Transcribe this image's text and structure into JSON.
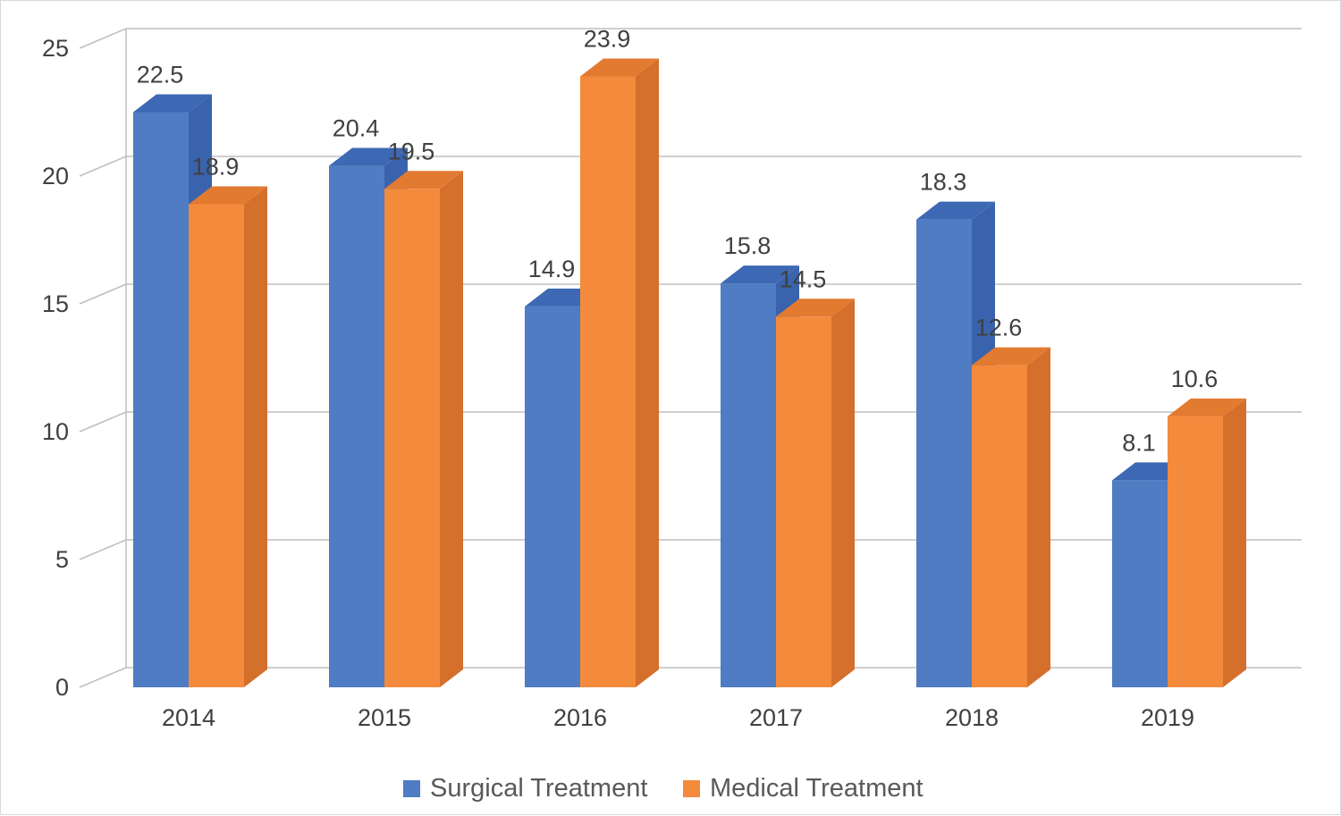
{
  "chart_data": {
    "type": "bar",
    "style": "3d-clustered-column",
    "categories": [
      "2014",
      "2015",
      "2016",
      "2017",
      "2018",
      "2019"
    ],
    "series": [
      {
        "name": "Surgical Treatment",
        "values": [
          22.5,
          20.4,
          14.9,
          15.8,
          18.3,
          8.1
        ],
        "color": "#4f7cc2",
        "side_color": "#3a63ad",
        "top_color": "#3d68b3"
      },
      {
        "name": "Medical Treatment",
        "values": [
          18.9,
          19.5,
          23.9,
          14.5,
          12.6,
          10.6
        ],
        "color": "#f48a3c",
        "side_color": "#d46f2c",
        "top_color": "#e27a30"
      }
    ],
    "y_ticks": [
      "0",
      "5",
      "10",
      "15",
      "20",
      "25"
    ],
    "ylim": [
      0,
      25
    ],
    "grid": true,
    "grid_color": "#bfbfbf",
    "legend_position": "bottom",
    "data_labels": true
  }
}
